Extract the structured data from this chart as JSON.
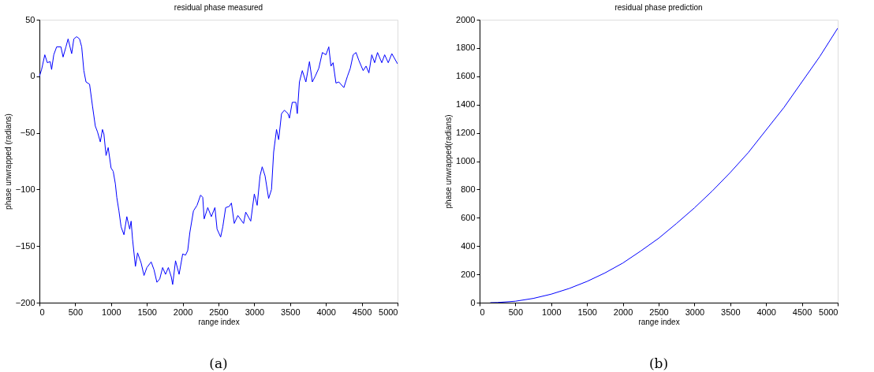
{
  "chart_data": [
    {
      "type": "line",
      "title": "residual phase measured",
      "xlabel": "range index",
      "ylabel": "phase unwrapped (radians)",
      "x": [
        0,
        30,
        75,
        110,
        150,
        170,
        200,
        240,
        300,
        330,
        370,
        400,
        450,
        480,
        520,
        560,
        590,
        620,
        650,
        700,
        740,
        780,
        810,
        850,
        880,
        900,
        930,
        960,
        1000,
        1030,
        1060,
        1080,
        1110,
        1140,
        1180,
        1220,
        1260,
        1280,
        1300,
        1340,
        1370,
        1420,
        1460,
        1500,
        1560,
        1600,
        1640,
        1680,
        1720,
        1760,
        1800,
        1840,
        1860,
        1900,
        1950,
        2000,
        2040,
        2070,
        2100,
        2150,
        2200,
        2250,
        2280,
        2300,
        2350,
        2400,
        2450,
        2480,
        2530,
        2560,
        2600,
        2650,
        2680,
        2720,
        2770,
        2850,
        2880,
        2950,
        3000,
        3040,
        3080,
        3110,
        3150,
        3200,
        3240,
        3270,
        3310,
        3340,
        3380,
        3420,
        3470,
        3490,
        3530,
        3580,
        3600,
        3630,
        3670,
        3720,
        3770,
        3810,
        3850,
        3900,
        3950,
        4000,
        4040,
        4070,
        4100,
        4140,
        4180,
        4250,
        4300,
        4340,
        4380,
        4420,
        4460,
        4520,
        4560,
        4600,
        4640,
        4680,
        4720,
        4780,
        4820,
        4870,
        4920,
        5000
      ],
      "series": [
        {
          "color": "#0000ff",
          "values": [
            0,
            6,
            19,
            12,
            13,
            6,
            19,
            26,
            26,
            17,
            26,
            33,
            20,
            33,
            35,
            33,
            26,
            5,
            -5,
            -7,
            -26,
            -44,
            -49,
            -58,
            -47,
            -51,
            -70,
            -63,
            -81,
            -84,
            -95,
            -107,
            -119,
            -133,
            -140,
            -124,
            -135,
            -128,
            -144,
            -168,
            -156,
            -165,
            -176,
            -169,
            -164,
            -171,
            -182,
            -179,
            -169,
            -175,
            -169,
            -177,
            -184,
            -163,
            -175,
            -157,
            -158,
            -154,
            -138,
            -119,
            -114,
            -105,
            -107,
            -126,
            -116,
            -124,
            -116,
            -135,
            -142,
            -133,
            -116,
            -115,
            -112,
            -130,
            -123,
            -130,
            -120,
            -128,
            -104,
            -114,
            -88,
            -80,
            -88,
            -108,
            -100,
            -67,
            -47,
            -56,
            -33,
            -30,
            -33,
            -37,
            -23,
            -23,
            -33,
            -5,
            5,
            -5,
            13,
            -5,
            0,
            7,
            21,
            19,
            26,
            9,
            12,
            -6,
            -5,
            -10,
            0,
            7,
            19,
            21,
            14,
            5,
            9,
            3,
            19,
            12,
            21,
            12,
            19,
            12,
            20,
            11
          ]
        }
      ],
      "xlim": [
        0,
        5000
      ],
      "ylim": [
        -200,
        50
      ],
      "xticks": [
        0,
        500,
        1000,
        1500,
        2000,
        2500,
        3000,
        3500,
        4000,
        4500,
        5000
      ],
      "yticks": [
        -200,
        -150,
        -100,
        -50,
        0,
        50
      ],
      "annotations": [
        "(a)"
      ],
      "grid": false
    },
    {
      "type": "line",
      "title": "residual phase prediction",
      "xlabel": "range index",
      "ylabel": "phase unwrapped(radians)",
      "x": [
        150,
        250,
        500,
        750,
        1000,
        1250,
        1500,
        1750,
        2000,
        2250,
        2500,
        2750,
        3000,
        3250,
        3500,
        3750,
        4000,
        4250,
        4500,
        4750,
        5000
      ],
      "series": [
        {
          "color": "#0000ff",
          "values": [
            0,
            1,
            10,
            30,
            60,
            100,
            150,
            210,
            280,
            365,
            455,
            560,
            670,
            790,
            920,
            1060,
            1220,
            1380,
            1560,
            1740,
            1940
          ]
        }
      ],
      "xlim": [
        0,
        5000
      ],
      "ylim": [
        0,
        2000
      ],
      "xticks": [
        0,
        500,
        1000,
        1500,
        2000,
        2500,
        3000,
        3500,
        4000,
        4500,
        5000
      ],
      "yticks": [
        0,
        200,
        400,
        600,
        800,
        1000,
        1200,
        1400,
        1600,
        1800,
        2000
      ],
      "annotations": [
        "(b)"
      ],
      "grid": false
    }
  ]
}
